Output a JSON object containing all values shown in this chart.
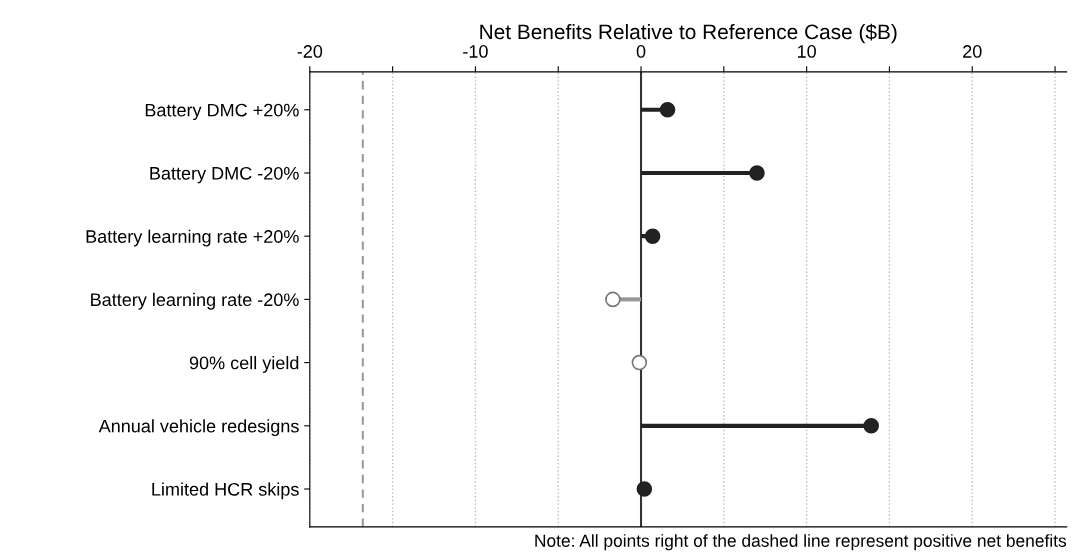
{
  "chart_data": {
    "type": "lollipop",
    "xlabel": "Net Benefits Relative to Reference Case ($B)",
    "orientation": "horizontal",
    "categories": [
      "Battery DMC +20%",
      "Battery DMC -20%",
      "Battery learning rate +20%",
      "Battery learning rate -20%",
      "90% cell yield",
      "Annual vehicle redesigns",
      "Limited HCR skips"
    ],
    "values": [
      1.6,
      7.0,
      0.7,
      -1.7,
      -0.1,
      13.9,
      0.2
    ],
    "colors": [
      "#222222",
      "#222222",
      "#222222",
      "#ffffff",
      "#ffffff",
      "#222222",
      "#222222"
    ],
    "xlim": [
      -20,
      25.7
    ],
    "xticks": [
      -20,
      {
        "value": -15,
        "label": null
      },
      -10,
      {
        "value": -5,
        "label": null
      },
      0,
      {
        "value": 5,
        "label": null
      },
      10,
      {
        "value": 15,
        "label": null
      },
      20,
      {
        "value": 25,
        "label": null
      }
    ],
    "grid": "x",
    "marker": "circle",
    "ref_lines": [
      {
        "axis": "x",
        "value": -16.8,
        "color": "#999999",
        "line_style": "dashed"
      },
      {
        "axis": "x",
        "value": 0,
        "color": "#333333",
        "line_style": "solid"
      }
    ],
    "annotations": [
      "Note: All points right of the dashed line represent positive net benefits"
    ]
  }
}
